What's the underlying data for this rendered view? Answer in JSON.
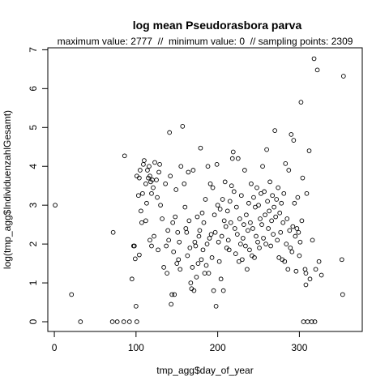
{
  "chart_data": {
    "type": "scatter",
    "title": "log mean Pseudorasbora parva",
    "subtitle": "maximum value: 2777  //  minimum value: 0  // sampling points: 2309",
    "xlabel": "tmp_agg$day_of_year",
    "ylabel": "log(tmp_agg$IndividuenzahlGesamt)",
    "xlim": [
      -8,
      377
    ],
    "ylim": [
      -0.25,
      7.05
    ],
    "x_ticks": [
      0,
      100,
      200,
      300
    ],
    "y_ticks": [
      0,
      1,
      2,
      3,
      4,
      5,
      6,
      7
    ],
    "grid": false,
    "legend": "none",
    "marker": "open-circle",
    "points": [
      [
        1,
        3.0
      ],
      [
        21,
        0.7
      ],
      [
        32,
        0.0
      ],
      [
        71,
        0.0
      ],
      [
        77,
        0.0
      ],
      [
        85,
        0.0
      ],
      [
        92,
        0.0
      ],
      [
        72,
        2.3
      ],
      [
        86,
        4.27
      ],
      [
        95,
        1.1
      ],
      [
        98,
        1.95
      ],
      [
        99,
        1.62
      ],
      [
        97,
        1.95
      ],
      [
        100,
        0.4
      ],
      [
        101,
        0.0
      ],
      [
        101,
        3.75
      ],
      [
        103,
        3.25
      ],
      [
        104,
        3.7
      ],
      [
        105,
        3.9
      ],
      [
        106,
        2.85
      ],
      [
        107,
        2.55
      ],
      [
        108,
        3.3
      ],
      [
        109,
        4.05
      ],
      [
        110,
        4.15
      ],
      [
        112,
        3.55
      ],
      [
        113,
        3.05
      ],
      [
        114,
        3.9
      ],
      [
        115,
        3.7
      ],
      [
        116,
        4.0
      ],
      [
        117,
        3.75
      ],
      [
        118,
        3.6
      ],
      [
        119,
        3.3
      ],
      [
        120,
        3.65
      ],
      [
        121,
        3.45
      ],
      [
        122,
        2.2
      ],
      [
        123,
        4.1
      ],
      [
        125,
        3.65
      ],
      [
        126,
        3.2
      ],
      [
        128,
        3.85
      ],
      [
        129,
        4.05
      ],
      [
        104,
        1.72
      ],
      [
        112,
        2.6
      ],
      [
        117,
        2.1
      ],
      [
        119,
        1.95
      ],
      [
        127,
        1.85
      ],
      [
        130,
        3.0
      ],
      [
        132,
        2.65
      ],
      [
        134,
        1.4
      ],
      [
        136,
        3.55
      ],
      [
        137,
        1.95
      ],
      [
        138,
        1.25
      ],
      [
        139,
        2.35
      ],
      [
        140,
        2.1
      ],
      [
        141,
        4.87
      ],
      [
        142,
        3.75
      ],
      [
        143,
        0.45
      ],
      [
        144,
        0.7
      ],
      [
        145,
        2.55
      ],
      [
        146,
        1.8
      ],
      [
        147,
        0.7
      ],
      [
        148,
        2.7
      ],
      [
        149,
        3.4
      ],
      [
        150,
        1.5
      ],
      [
        151,
        2.3
      ],
      [
        152,
        1.6
      ],
      [
        153,
        2.05
      ],
      [
        154,
        1.35
      ],
      [
        155,
        4.0
      ],
      [
        157,
        5.03
      ],
      [
        159,
        3.55
      ],
      [
        160,
        2.95
      ],
      [
        161,
        2.4
      ],
      [
        162,
        2.3
      ],
      [
        163,
        1.7
      ],
      [
        164,
        3.85
      ],
      [
        165,
        2.6
      ],
      [
        166,
        1.9
      ],
      [
        167,
        1.0
      ],
      [
        168,
        0.85
      ],
      [
        169,
        1.4
      ],
      [
        170,
        3.9
      ],
      [
        171,
        0.8
      ],
      [
        172,
        2.05
      ],
      [
        173,
        1.95
      ],
      [
        174,
        1.15
      ],
      [
        175,
        2.7
      ],
      [
        176,
        1.5
      ],
      [
        177,
        2.2
      ],
      [
        178,
        2.35
      ],
      [
        179,
        4.47
      ],
      [
        180,
        1.6
      ],
      [
        181,
        2.8
      ],
      [
        182,
        1.85
      ],
      [
        183,
        2.55
      ],
      [
        184,
        1.25
      ],
      [
        185,
        3.15
      ],
      [
        186,
        1.45
      ],
      [
        187,
        2.0
      ],
      [
        188,
        4.0
      ],
      [
        189,
        1.25
      ],
      [
        190,
        2.15
      ],
      [
        191,
        3.55
      ],
      [
        192,
        2.25
      ],
      [
        193,
        1.65
      ],
      [
        194,
        3.45
      ],
      [
        195,
        0.8
      ],
      [
        196,
        2.75
      ],
      [
        197,
        2.3
      ],
      [
        198,
        0.4
      ],
      [
        199,
        4.05
      ],
      [
        200,
        3.0
      ],
      [
        201,
        2.05
      ],
      [
        202,
        1.55
      ],
      [
        203,
        2.9
      ],
      [
        204,
        1.1
      ],
      [
        205,
        2.2
      ],
      [
        206,
        3.15
      ],
      [
        207,
        0.8
      ],
      [
        208,
        2.6
      ],
      [
        209,
        3.6
      ],
      [
        210,
        2.45
      ],
      [
        211,
        1.9
      ],
      [
        212,
        2.85
      ],
      [
        213,
        2.1
      ],
      [
        214,
        1.85
      ],
      [
        215,
        3.1
      ],
      [
        216,
        2.55
      ],
      [
        217,
        3.5
      ],
      [
        218,
        4.2
      ],
      [
        219,
        4.37
      ],
      [
        220,
        3.35
      ],
      [
        221,
        2.4
      ],
      [
        222,
        1.75
      ],
      [
        223,
        2.95
      ],
      [
        224,
        2.25
      ],
      [
        225,
        4.2
      ],
      [
        226,
        1.55
      ],
      [
        227,
        2.65
      ],
      [
        228,
        2.0
      ],
      [
        229,
        3.25
      ],
      [
        230,
        1.6
      ],
      [
        231,
        2.15
      ],
      [
        232,
        2.5
      ],
      [
        233,
        3.9
      ],
      [
        234,
        1.95
      ],
      [
        235,
        2.75
      ],
      [
        236,
        1.35
      ],
      [
        237,
        2.35
      ],
      [
        238,
        3.05
      ],
      [
        239,
        1.85
      ],
      [
        240,
        2.55
      ],
      [
        241,
        3.55
      ],
      [
        242,
        1.7
      ],
      [
        243,
        2.4
      ],
      [
        244,
        3.2
      ],
      [
        245,
        1.65
      ],
      [
        246,
        2.95
      ],
      [
        247,
        2.2
      ],
      [
        248,
        3.45
      ],
      [
        249,
        2.05
      ],
      [
        250,
        3.0
      ],
      [
        251,
        1.9
      ],
      [
        252,
        2.65
      ],
      [
        253,
        3.3
      ],
      [
        254,
        2.5
      ],
      [
        255,
        4.0
      ],
      [
        256,
        2.15
      ],
      [
        257,
        3.35
      ],
      [
        258,
        2.75
      ],
      [
        259,
        2.0
      ],
      [
        260,
        4.43
      ],
      [
        261,
        3.1
      ],
      [
        262,
        2.4
      ],
      [
        263,
        2.85
      ],
      [
        264,
        3.6
      ],
      [
        265,
        1.95
      ],
      [
        266,
        2.6
      ],
      [
        267,
        3.25
      ],
      [
        268,
        2.25
      ],
      [
        269,
        2.95
      ],
      [
        270,
        4.92
      ],
      [
        271,
        2.7
      ],
      [
        272,
        3.15
      ],
      [
        273,
        2.1
      ],
      [
        274,
        3.45
      ],
      [
        275,
        1.65
      ],
      [
        276,
        2.8
      ],
      [
        277,
        2.3
      ],
      [
        278,
        3.05
      ],
      [
        279,
        1.6
      ],
      [
        280,
        2.55
      ],
      [
        281,
        3.3
      ],
      [
        282,
        1.55
      ],
      [
        283,
        4.07
      ],
      [
        284,
        2.0
      ],
      [
        285,
        2.65
      ],
      [
        286,
        1.35
      ],
      [
        287,
        3.9
      ],
      [
        288,
        2.35
      ],
      [
        289,
        1.9
      ],
      [
        290,
        4.82
      ],
      [
        291,
        1.8
      ],
      [
        292,
        2.45
      ],
      [
        293,
        4.67
      ],
      [
        294,
        3.05
      ],
      [
        295,
        2.2
      ],
      [
        296,
        1.3
      ],
      [
        297,
        2.4
      ],
      [
        298,
        3.2
      ],
      [
        299,
        2.3
      ],
      [
        300,
        1.7
      ],
      [
        301,
        2.05
      ],
      [
        302,
        5.65
      ],
      [
        303,
        2.6
      ],
      [
        304,
        3.7
      ],
      [
        305,
        0.0
      ],
      [
        307,
        1.35
      ],
      [
        308,
        1.25
      ],
      [
        309,
        3.3
      ],
      [
        310,
        0.0
      ],
      [
        312,
        4.4
      ],
      [
        313,
        1.1
      ],
      [
        315,
        0.0
      ],
      [
        316,
        2.1
      ],
      [
        318,
        6.77
      ],
      [
        319,
        0.0
      ],
      [
        320,
        1.35
      ],
      [
        322,
        6.48
      ],
      [
        324,
        1.55
      ],
      [
        327,
        1.2
      ],
      [
        308,
        0.95
      ],
      [
        352,
        1.6
      ],
      [
        353,
        0.7
      ],
      [
        354,
        6.32
      ]
    ]
  }
}
